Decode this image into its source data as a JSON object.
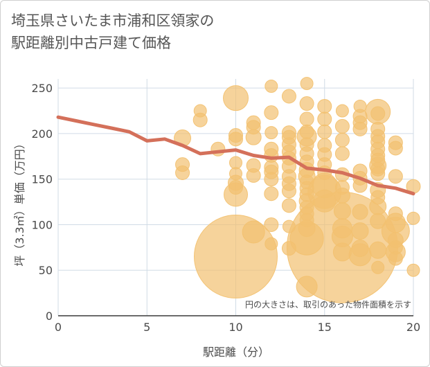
{
  "chart_data": {
    "type": "scatter",
    "title": "埼玉県さいたま市浦和区領家の\n駅距離別中古戸建て価格",
    "xlabel": "駅距離（分）",
    "ylabel": "坪（3.3㎡）単価（万円）",
    "xlim": [
      0,
      20
    ],
    "ylim": [
      0,
      260
    ],
    "x_ticks": [
      "0",
      "5",
      "10",
      "15",
      "20"
    ],
    "y_ticks": [
      "0",
      "50",
      "100",
      "150",
      "200",
      "250"
    ],
    "x_tick_values": [
      0,
      5,
      10,
      15,
      20
    ],
    "y_tick_values": [
      0,
      50,
      100,
      150,
      200,
      250
    ],
    "grid": true,
    "bubble_color": "#f2c170",
    "line_color": "#d4705a",
    "note": "円の大きさは、取引のあった物件面積を示す",
    "line_series": {
      "x": [
        0,
        1,
        2,
        3,
        4,
        5,
        6,
        7,
        8,
        9,
        10,
        11,
        12,
        13,
        14,
        15,
        16,
        17,
        18,
        19,
        20
      ],
      "y": [
        218,
        214,
        210,
        206,
        202,
        192,
        194,
        187,
        178,
        180,
        182,
        176,
        173,
        174,
        162,
        160,
        157,
        151,
        143,
        140,
        134
      ]
    },
    "bubbles": [
      {
        "x": 7,
        "y": 195,
        "size": 12
      },
      {
        "x": 7,
        "y": 166,
        "size": 10
      },
      {
        "x": 7,
        "y": 157,
        "size": 10
      },
      {
        "x": 8,
        "y": 225,
        "size": 9
      },
      {
        "x": 8,
        "y": 215,
        "size": 10
      },
      {
        "x": 9,
        "y": 183,
        "size": 10
      },
      {
        "x": 10,
        "y": 239,
        "size": 18
      },
      {
        "x": 10,
        "y": 198,
        "size": 10
      },
      {
        "x": 10,
        "y": 194,
        "size": 10
      },
      {
        "x": 10,
        "y": 168,
        "size": 9
      },
      {
        "x": 10,
        "y": 156,
        "size": 9
      },
      {
        "x": 10,
        "y": 146,
        "size": 11
      },
      {
        "x": 10,
        "y": 141,
        "size": 10
      },
      {
        "x": 10,
        "y": 133,
        "size": 17
      },
      {
        "x": 10,
        "y": 65,
        "size": 60
      },
      {
        "x": 11,
        "y": 212,
        "size": 10
      },
      {
        "x": 11,
        "y": 207,
        "size": 10
      },
      {
        "x": 11,
        "y": 196,
        "size": 11
      },
      {
        "x": 11,
        "y": 165,
        "size": 10
      },
      {
        "x": 11,
        "y": 154,
        "size": 10
      },
      {
        "x": 11,
        "y": 92,
        "size": 16
      },
      {
        "x": 12,
        "y": 252,
        "size": 9
      },
      {
        "x": 12,
        "y": 223,
        "size": 10
      },
      {
        "x": 12,
        "y": 201,
        "size": 9
      },
      {
        "x": 12,
        "y": 183,
        "size": 10
      },
      {
        "x": 12,
        "y": 176,
        "size": 10
      },
      {
        "x": 12,
        "y": 163,
        "size": 10
      },
      {
        "x": 12,
        "y": 158,
        "size": 10
      },
      {
        "x": 12,
        "y": 150,
        "size": 10
      },
      {
        "x": 12,
        "y": 134,
        "size": 10
      },
      {
        "x": 12,
        "y": 100,
        "size": 10
      },
      {
        "x": 12,
        "y": 79,
        "size": 9
      },
      {
        "x": 13,
        "y": 241,
        "size": 10
      },
      {
        "x": 13,
        "y": 201,
        "size": 10
      },
      {
        "x": 13,
        "y": 196,
        "size": 10
      },
      {
        "x": 13,
        "y": 188,
        "size": 10
      },
      {
        "x": 13,
        "y": 180,
        "size": 10
      },
      {
        "x": 13,
        "y": 173,
        "size": 10
      },
      {
        "x": 13,
        "y": 164,
        "size": 10
      },
      {
        "x": 13,
        "y": 153,
        "size": 10
      },
      {
        "x": 13,
        "y": 145,
        "size": 10
      },
      {
        "x": 13,
        "y": 137,
        "size": 10
      },
      {
        "x": 13,
        "y": 121,
        "size": 10
      },
      {
        "x": 13,
        "y": 98,
        "size": 9
      },
      {
        "x": 13,
        "y": 74,
        "size": 10
      },
      {
        "x": 14,
        "y": 255,
        "size": 9
      },
      {
        "x": 14,
        "y": 233,
        "size": 10
      },
      {
        "x": 14,
        "y": 216,
        "size": 10
      },
      {
        "x": 14,
        "y": 202,
        "size": 10
      },
      {
        "x": 14,
        "y": 197,
        "size": 14
      },
      {
        "x": 14,
        "y": 188,
        "size": 10
      },
      {
        "x": 14,
        "y": 178,
        "size": 10
      },
      {
        "x": 14,
        "y": 169,
        "size": 10
      },
      {
        "x": 14,
        "y": 160,
        "size": 11
      },
      {
        "x": 14,
        "y": 153,
        "size": 12
      },
      {
        "x": 14,
        "y": 147,
        "size": 10
      },
      {
        "x": 14,
        "y": 140,
        "size": 10
      },
      {
        "x": 14,
        "y": 133,
        "size": 10
      },
      {
        "x": 14,
        "y": 126,
        "size": 11
      },
      {
        "x": 14,
        "y": 119,
        "size": 10
      },
      {
        "x": 14,
        "y": 112,
        "size": 10
      },
      {
        "x": 14,
        "y": 105,
        "size": 10
      },
      {
        "x": 14,
        "y": 96,
        "size": 12
      },
      {
        "x": 14,
        "y": 85,
        "size": 24
      },
      {
        "x": 14,
        "y": 32,
        "size": 15
      },
      {
        "x": 15,
        "y": 230,
        "size": 10
      },
      {
        "x": 15,
        "y": 216,
        "size": 10
      },
      {
        "x": 15,
        "y": 202,
        "size": 10
      },
      {
        "x": 15,
        "y": 187,
        "size": 10
      },
      {
        "x": 15,
        "y": 177,
        "size": 10
      },
      {
        "x": 15,
        "y": 166,
        "size": 10
      },
      {
        "x": 15,
        "y": 157,
        "size": 10
      },
      {
        "x": 15,
        "y": 143,
        "size": 18
      },
      {
        "x": 15,
        "y": 136,
        "size": 24
      },
      {
        "x": 15,
        "y": 126,
        "size": 16
      },
      {
        "x": 16,
        "y": 225,
        "size": 9
      },
      {
        "x": 16,
        "y": 208,
        "size": 10
      },
      {
        "x": 16,
        "y": 193,
        "size": 10
      },
      {
        "x": 16,
        "y": 178,
        "size": 10
      },
      {
        "x": 16,
        "y": 155,
        "size": 10
      },
      {
        "x": 16,
        "y": 141,
        "size": 10
      },
      {
        "x": 16,
        "y": 132,
        "size": 11
      },
      {
        "x": 16,
        "y": 115,
        "size": 12
      },
      {
        "x": 16,
        "y": 96,
        "size": 14
      },
      {
        "x": 16,
        "y": 87,
        "size": 15
      },
      {
        "x": 16,
        "y": 70,
        "size": 13
      },
      {
        "x": 16,
        "y": 75,
        "size": 80
      },
      {
        "x": 17,
        "y": 230,
        "size": 9
      },
      {
        "x": 17,
        "y": 219,
        "size": 10
      },
      {
        "x": 17,
        "y": 212,
        "size": 10
      },
      {
        "x": 17,
        "y": 205,
        "size": 10
      },
      {
        "x": 17,
        "y": 159,
        "size": 10
      },
      {
        "x": 17,
        "y": 151,
        "size": 10
      },
      {
        "x": 17,
        "y": 143,
        "size": 10
      },
      {
        "x": 17,
        "y": 114,
        "size": 11
      },
      {
        "x": 17,
        "y": 93,
        "size": 12
      },
      {
        "x": 17,
        "y": 74,
        "size": 12
      },
      {
        "x": 17,
        "y": 67,
        "size": 16
      },
      {
        "x": 18,
        "y": 224,
        "size": 18
      },
      {
        "x": 18,
        "y": 222,
        "size": 10
      },
      {
        "x": 18,
        "y": 205,
        "size": 10
      },
      {
        "x": 18,
        "y": 197,
        "size": 10
      },
      {
        "x": 18,
        "y": 191,
        "size": 10
      },
      {
        "x": 18,
        "y": 183,
        "size": 10
      },
      {
        "x": 18,
        "y": 176,
        "size": 10
      },
      {
        "x": 18,
        "y": 171,
        "size": 10
      },
      {
        "x": 18,
        "y": 165,
        "size": 12
      },
      {
        "x": 18,
        "y": 161,
        "size": 10
      },
      {
        "x": 18,
        "y": 156,
        "size": 10
      },
      {
        "x": 18,
        "y": 138,
        "size": 11
      },
      {
        "x": 18,
        "y": 130,
        "size": 10
      },
      {
        "x": 18,
        "y": 120,
        "size": 12
      },
      {
        "x": 18,
        "y": 104,
        "size": 11
      },
      {
        "x": 18,
        "y": 72,
        "size": 12
      },
      {
        "x": 18,
        "y": 53,
        "size": 9
      },
      {
        "x": 19,
        "y": 190,
        "size": 10
      },
      {
        "x": 19,
        "y": 184,
        "size": 10
      },
      {
        "x": 19,
        "y": 153,
        "size": 10
      },
      {
        "x": 19,
        "y": 112,
        "size": 10
      },
      {
        "x": 19,
        "y": 102,
        "size": 14
      },
      {
        "x": 19,
        "y": 93,
        "size": 20
      },
      {
        "x": 19,
        "y": 83,
        "size": 11
      },
      {
        "x": 19,
        "y": 75,
        "size": 10
      },
      {
        "x": 19,
        "y": 70,
        "size": 14
      },
      {
        "x": 19,
        "y": 63,
        "size": 10
      },
      {
        "x": 20,
        "y": 142,
        "size": 10
      },
      {
        "x": 20,
        "y": 107,
        "size": 9
      },
      {
        "x": 20,
        "y": 50,
        "size": 9
      }
    ]
  }
}
